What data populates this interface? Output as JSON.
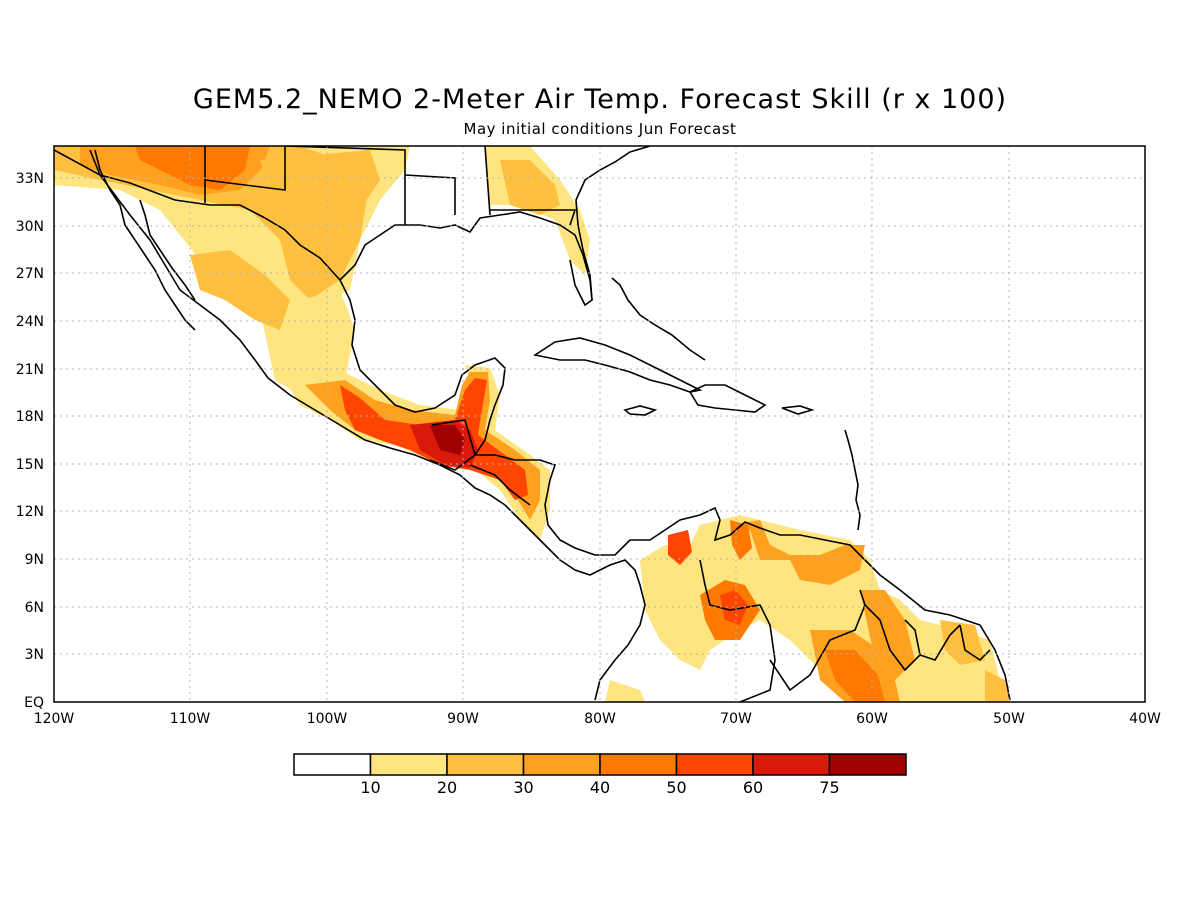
{
  "title": "GEM5.2_NEMO 2-Meter Air Temp. Forecast Skill (r x 100)",
  "subtitle": "May initial conditions  Jun Forecast",
  "lon_labels": [
    "120W",
    "110W",
    "100W",
    "90W",
    "80W",
    "70W",
    "60W",
    "50W",
    "40W"
  ],
  "lat_labels": [
    "EQ",
    "3N",
    "6N",
    "9N",
    "12N",
    "15N",
    "18N",
    "21N",
    "24N",
    "27N",
    "30N",
    "33N"
  ],
  "colorbar": {
    "labels": [
      "10",
      "20",
      "30",
      "40",
      "50",
      "60",
      "75"
    ],
    "colors": [
      "#ffffff",
      "#ffe57f",
      "#ffc040",
      "#ffa01e",
      "#ff7800",
      "#ff4500",
      "#d91a0a",
      "#a00000"
    ]
  },
  "map": {
    "lon_range": [
      -120,
      -40
    ],
    "lat_range": [
      0,
      35
    ],
    "grid": "dotted"
  }
}
